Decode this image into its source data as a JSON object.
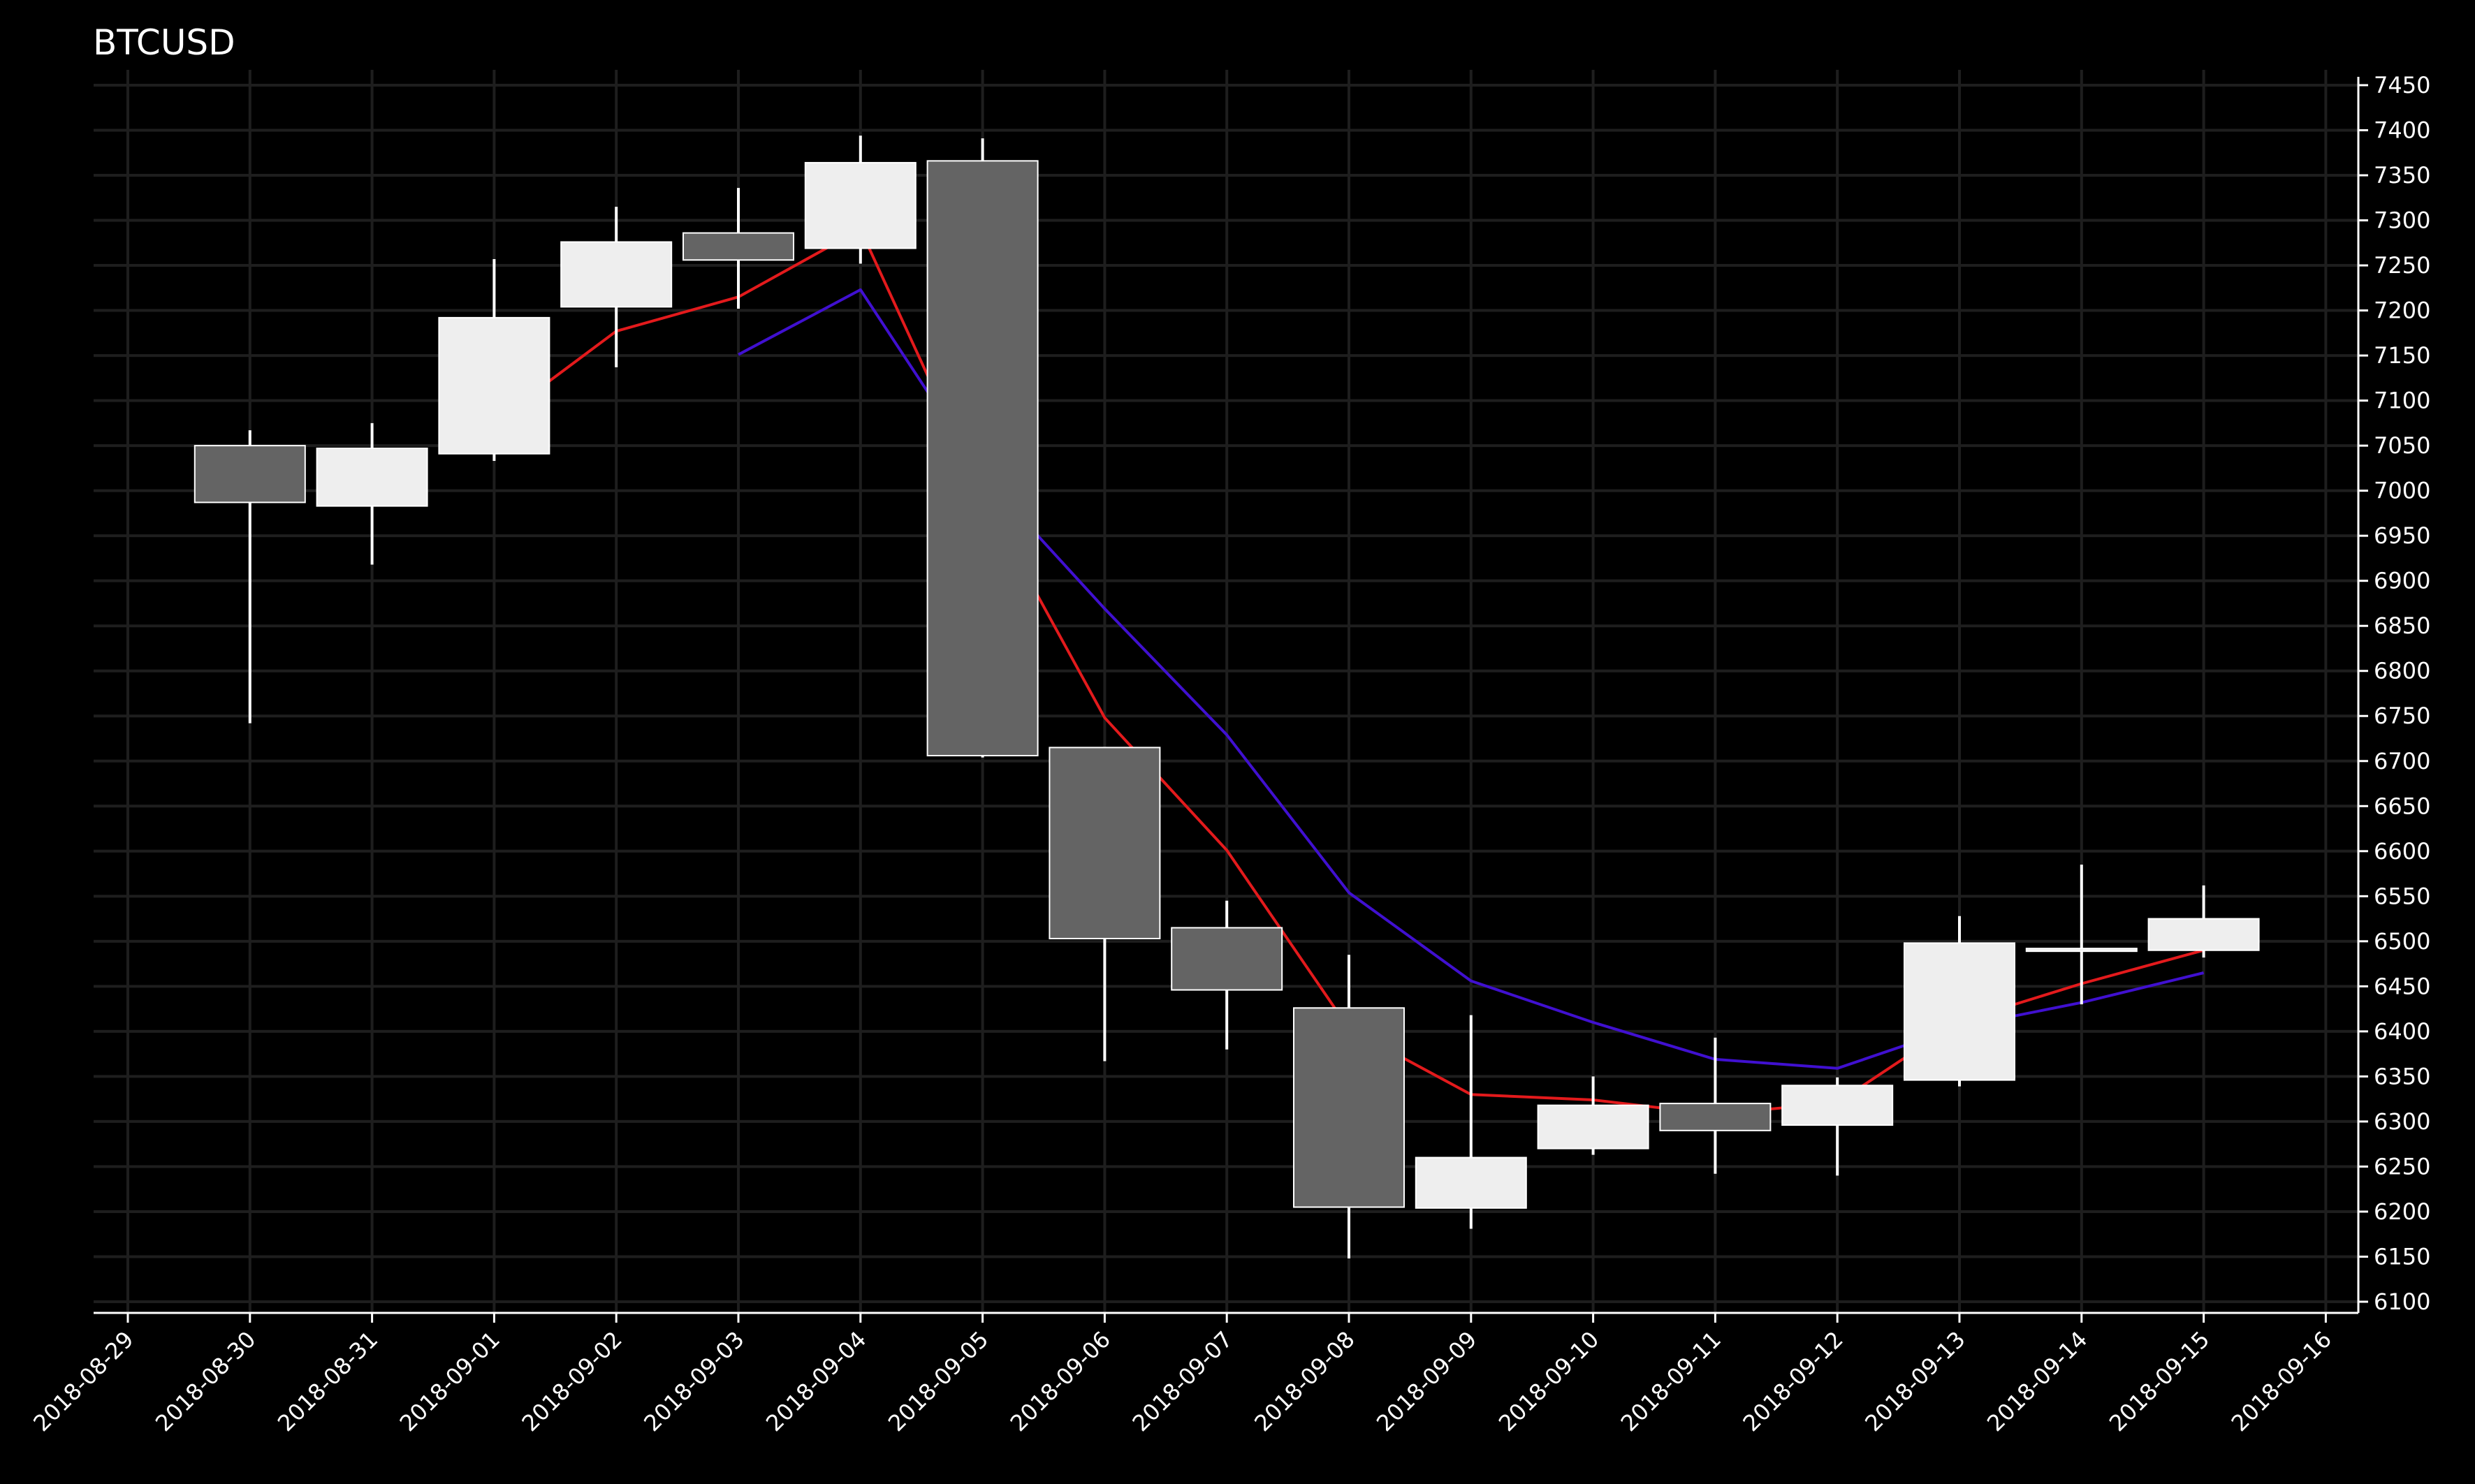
{
  "chart_data": {
    "type": "candlestick",
    "title": "BTCUSD",
    "xlabel": "",
    "ylabel": "",
    "ylim": [
      6100,
      7450
    ],
    "xlim": [
      "2018-08-29",
      "2018-09-16"
    ],
    "y_ticks": [
      6100,
      6150,
      6200,
      6250,
      6300,
      6350,
      6400,
      6450,
      6500,
      6550,
      6600,
      6650,
      6700,
      6750,
      6800,
      6850,
      6900,
      6950,
      7000,
      7050,
      7100,
      7150,
      7200,
      7250,
      7300,
      7350,
      7400,
      7450
    ],
    "x_ticks": [
      "2018-08-29",
      "2018-08-30",
      "2018-08-31",
      "2018-09-01",
      "2018-09-02",
      "2018-09-03",
      "2018-09-04",
      "2018-09-05",
      "2018-09-06",
      "2018-09-07",
      "2018-09-08",
      "2018-09-09",
      "2018-09-10",
      "2018-09-11",
      "2018-09-12",
      "2018-09-13",
      "2018-09-14",
      "2018-09-15",
      "2018-09-16"
    ],
    "y_axis_side": "right",
    "grid": true,
    "colors": {
      "background": "#000000",
      "grid": "#1e1e1e",
      "axis": "#ffffff",
      "up_candle": "#eeeeee",
      "down_candle": "#646464",
      "wick": "#ffffff",
      "ma_fast": "#e31a1c",
      "ma_slow": "#4010d0"
    },
    "candles": [
      {
        "date": "2018-08-30",
        "open": 7050,
        "high": 7067,
        "low": 6742,
        "close": 6987
      },
      {
        "date": "2018-08-31",
        "open": 6983,
        "high": 7075,
        "low": 6918,
        "close": 7047
      },
      {
        "date": "2018-09-01",
        "open": 7041,
        "high": 7257,
        "low": 7033,
        "close": 7192
      },
      {
        "date": "2018-09-02",
        "open": 7204,
        "high": 7315,
        "low": 7137,
        "close": 7276
      },
      {
        "date": "2018-09-03",
        "open": 7286,
        "high": 7336,
        "low": 7202,
        "close": 7256
      },
      {
        "date": "2018-09-04",
        "open": 7269,
        "high": 7394,
        "low": 7252,
        "close": 7364
      },
      {
        "date": "2018-09-05",
        "open": 7366,
        "high": 7391,
        "low": 6704,
        "close": 6706
      },
      {
        "date": "2018-09-06",
        "open": 6715,
        "high": 6715,
        "low": 6367,
        "close": 6503
      },
      {
        "date": "2018-09-07",
        "open": 6515,
        "high": 6545,
        "low": 6380,
        "close": 6446
      },
      {
        "date": "2018-09-08",
        "open": 6426,
        "high": 6485,
        "low": 6148,
        "close": 6205
      },
      {
        "date": "2018-09-09",
        "open": 6204,
        "high": 6418,
        "low": 6181,
        "close": 6260
      },
      {
        "date": "2018-09-10",
        "open": 6270,
        "high": 6350,
        "low": 6263,
        "close": 6318
      },
      {
        "date": "2018-09-11",
        "open": 6320,
        "high": 6393,
        "low": 6242,
        "close": 6290
      },
      {
        "date": "2018-09-12",
        "open": 6296,
        "high": 6349,
        "low": 6240,
        "close": 6340
      },
      {
        "date": "2018-09-13",
        "open": 6346,
        "high": 6528,
        "low": 6339,
        "close": 6498
      },
      {
        "date": "2018-09-14",
        "open": 6490,
        "high": 6585,
        "low": 6430,
        "close": 6492
      },
      {
        "date": "2018-09-15",
        "open": 6490,
        "high": 6562,
        "low": 6482,
        "close": 6525
      }
    ],
    "series": [
      {
        "line": "ma_fast",
        "dates": [
          "2018-09-01",
          "2018-09-02",
          "2018-09-03",
          "2018-09-04",
          "2018-09-05",
          "2018-09-06",
          "2018-09-07",
          "2018-09-08",
          "2018-09-09",
          "2018-09-10",
          "2018-09-11",
          "2018-09-12",
          "2018-09-13",
          "2018-09-14",
          "2018-09-15"
        ],
        "values": [
          7076,
          7177,
          7215,
          7290,
          6995,
          6748,
          6601,
          6403,
          6330,
          6324,
          6308,
          6321,
          6411,
          6453,
          6490
        ]
      },
      {
        "line": "ma_slow",
        "dates": [
          "2018-09-03",
          "2018-09-04",
          "2018-09-05",
          "2018-09-06",
          "2018-09-07",
          "2018-09-08",
          "2018-09-09",
          "2018-09-10",
          "2018-09-11",
          "2018-09-12",
          "2018-09-13",
          "2018-09-14",
          "2018-09-15"
        ],
        "values": [
          7151,
          7223,
          7017,
          6869,
          6729,
          6554,
          6456,
          6410,
          6369,
          6359,
          6405,
          6432,
          6465
        ]
      }
    ]
  }
}
